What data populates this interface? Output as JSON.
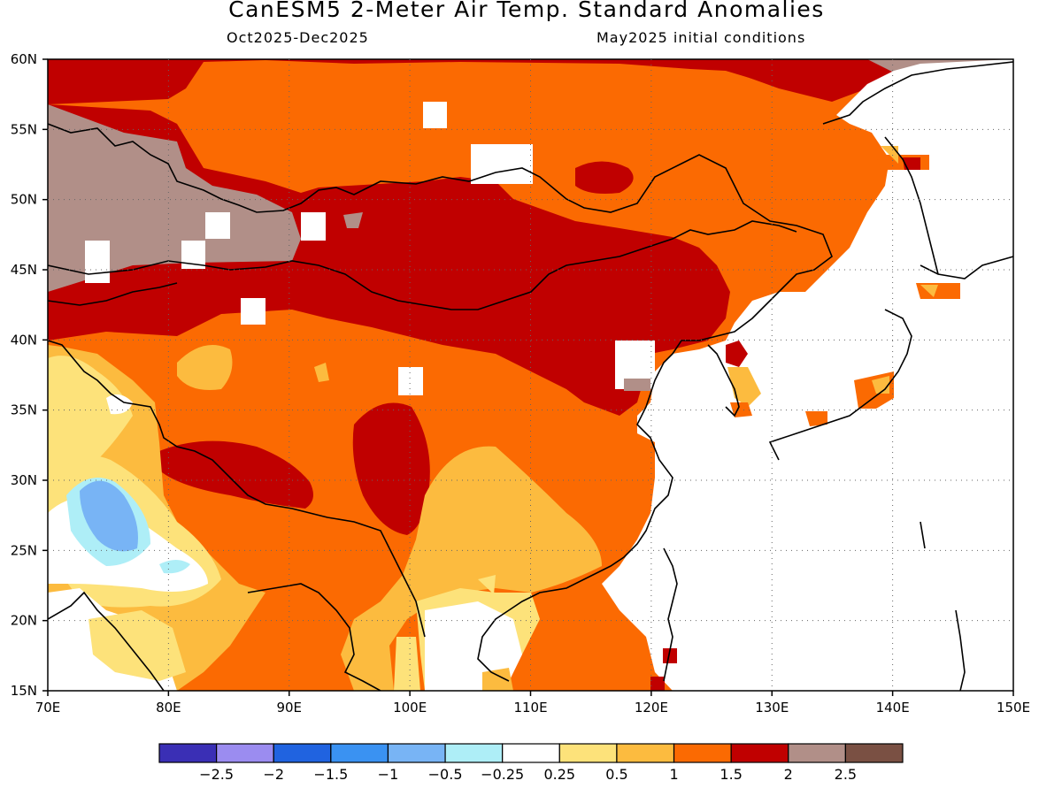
{
  "header": {
    "title": "CanESM5 2-Meter Air Temp. Standard Anomalies",
    "period": "Oct2025-Dec2025",
    "init": "May2025 initial conditions"
  },
  "map": {
    "lat_labels": [
      "60N",
      "55N",
      "50N",
      "45N",
      "40N",
      "35N",
      "30N",
      "25N",
      "20N",
      "15N"
    ],
    "lon_labels": [
      "70E",
      "80E",
      "90E",
      "100E",
      "110E",
      "120E",
      "130E",
      "140E",
      "150E"
    ],
    "lon_range": [
      70,
      150
    ],
    "lat_range": [
      15,
      60
    ],
    "colors": {
      "neg25": "#3a2fb5",
      "neg2": "#9b8cf0",
      "neg15": "#2063e0",
      "neg1": "#3a92f2",
      "neg05": "#78b4f5",
      "neg025": "#aeeef7",
      "neutral": "#ffffff",
      "pos025": "#fde27a",
      "pos05": "#fcbb3f",
      "pos1": "#fb6a02",
      "pos15": "#c00000",
      "pos2": "#b18f88",
      "pos25": "#7a5043"
    }
  },
  "colorbar": {
    "colors": [
      "#3a2fb5",
      "#9b8cf0",
      "#2063e0",
      "#3a92f2",
      "#78b4f5",
      "#aeeef7",
      "#ffffff",
      "#fde27a",
      "#fcbb3f",
      "#fb6a02",
      "#c00000",
      "#b18f88",
      "#7a5043"
    ],
    "labels": [
      "−2.5",
      "−2",
      "−1.5",
      "−1",
      "−0.5",
      "−0.25",
      "0.25",
      "0.5",
      "1",
      "1.5",
      "2",
      "2.5"
    ]
  }
}
